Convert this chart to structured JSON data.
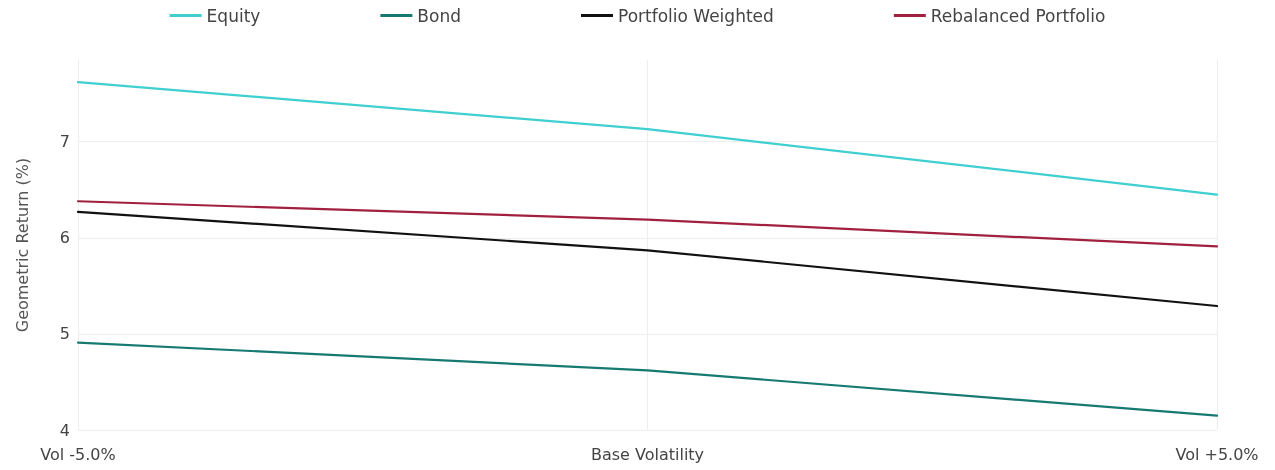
{
  "chart_data": {
    "type": "line",
    "ylabel": "Geometric Return (%)",
    "categories": [
      "Vol -5.0%",
      "Base Volatility",
      "Vol +5.0%"
    ],
    "series": [
      {
        "name": "Equity",
        "color": "#3fcfd0",
        "values": [
          7.62,
          7.13,
          6.45
        ]
      },
      {
        "name": "Bond",
        "color": "#177a72",
        "values": [
          4.91,
          4.62,
          4.15
        ]
      },
      {
        "name": "Portfolio Weighted",
        "color": "#111111",
        "values": [
          6.27,
          5.87,
          5.29
        ]
      },
      {
        "name": "Rebalanced Portfolio",
        "color": "#a1203f",
        "values": [
          6.38,
          6.19,
          5.91
        ]
      }
    ],
    "ylim": [
      4,
      7.85
    ],
    "yticks": [
      4,
      5,
      6,
      7
    ],
    "grid": true,
    "legend": "top",
    "marker": "none",
    "line_style": "solid"
  }
}
